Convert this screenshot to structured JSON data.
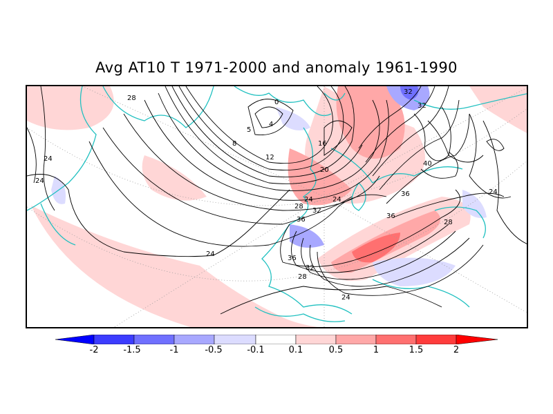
{
  "title": "Avg AT10 T 1971-2000 and anomaly 1961-1990",
  "colors": {
    "land_outline": "#20c0c0",
    "contour": "#000000",
    "frame": "#000000",
    "scale": [
      "#0000ff",
      "#3c3cff",
      "#7070ff",
      "#a8a8ff",
      "#dcdcff",
      "#ffffff",
      "#ffd6d6",
      "#ffa8a8",
      "#ff7070",
      "#ff3c3c",
      "#ff0000"
    ]
  },
  "contour_labels": [
    {
      "text": "28"
    },
    {
      "text": "0"
    },
    {
      "text": "4"
    },
    {
      "text": "5"
    },
    {
      "text": "8"
    },
    {
      "text": "12"
    },
    {
      "text": "16"
    },
    {
      "text": "20"
    },
    {
      "text": "24"
    },
    {
      "text": "24"
    },
    {
      "text": "28"
    },
    {
      "text": "32"
    },
    {
      "text": "36"
    },
    {
      "text": "36"
    },
    {
      "text": "32"
    },
    {
      "text": "28"
    },
    {
      "text": "24"
    },
    {
      "text": "24"
    },
    {
      "text": "24"
    },
    {
      "text": "32"
    },
    {
      "text": "32"
    },
    {
      "text": "40"
    },
    {
      "text": "36"
    },
    {
      "text": "36"
    },
    {
      "text": "28"
    },
    {
      "text": "24"
    },
    {
      "text": "24"
    }
  ],
  "colorbar": {
    "ticks": [
      "-2",
      "-1.5",
      "-1",
      "-0.5",
      "-0.1",
      "0.1",
      "0.5",
      "1",
      "1.5",
      "2"
    ]
  }
}
